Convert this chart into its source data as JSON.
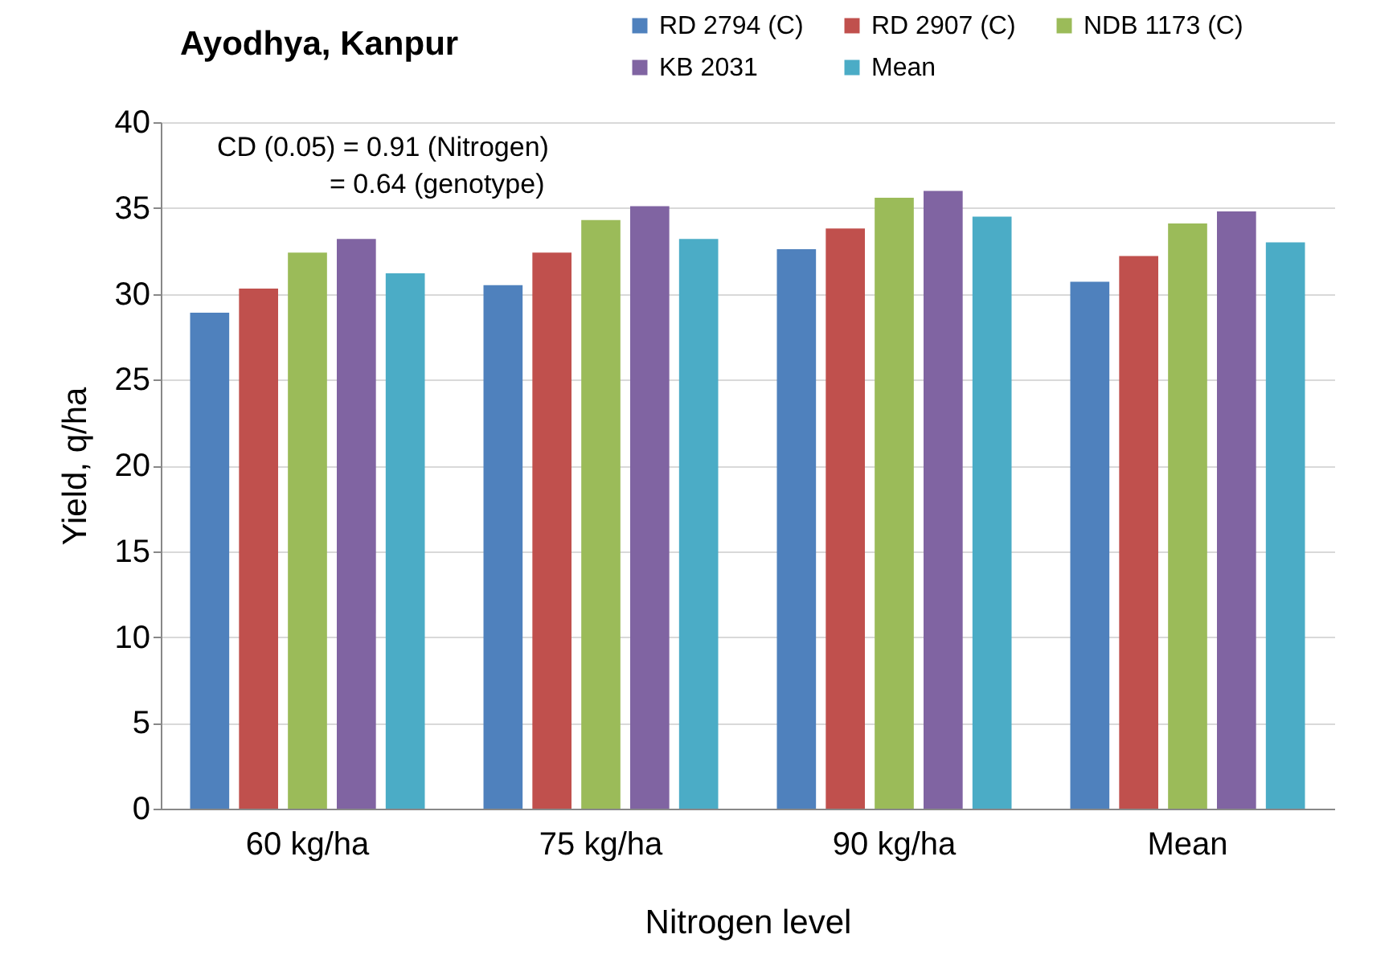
{
  "chart_data": {
    "type": "bar",
    "title": "Ayodhya, Kanpur",
    "xlabel": "Nitrogen level",
    "ylabel": "Yield, q/ha",
    "categories": [
      "60 kg/ha",
      "75 kg/ha",
      "90 kg/ha",
      "Mean"
    ],
    "series": [
      {
        "name": "RD 2794 (C)",
        "color": "#4f81bd",
        "values": [
          28.9,
          30.5,
          32.6,
          30.7
        ]
      },
      {
        "name": "RD 2907 (C)",
        "color": "#c0504d",
        "values": [
          30.3,
          32.4,
          33.8,
          32.2
        ]
      },
      {
        "name": "NDB 1173 (C)",
        "color": "#9bbb59",
        "values": [
          32.4,
          34.3,
          35.6,
          34.1
        ]
      },
      {
        "name": "KB 2031",
        "color": "#8064a2",
        "values": [
          33.2,
          35.1,
          36.0,
          34.8
        ]
      },
      {
        "name": "Mean",
        "color": "#4bacc6",
        "values": [
          31.2,
          33.2,
          34.5,
          33.0
        ]
      }
    ],
    "annotations": [
      "CD (0.05) = 0.91 (Nitrogen)",
      "= 0.64 (genotype)"
    ],
    "ylim": [
      0,
      40
    ],
    "yticks": [
      0,
      5,
      10,
      15,
      20,
      25,
      30,
      35,
      40
    ],
    "grid": "y",
    "legend": "top right"
  }
}
